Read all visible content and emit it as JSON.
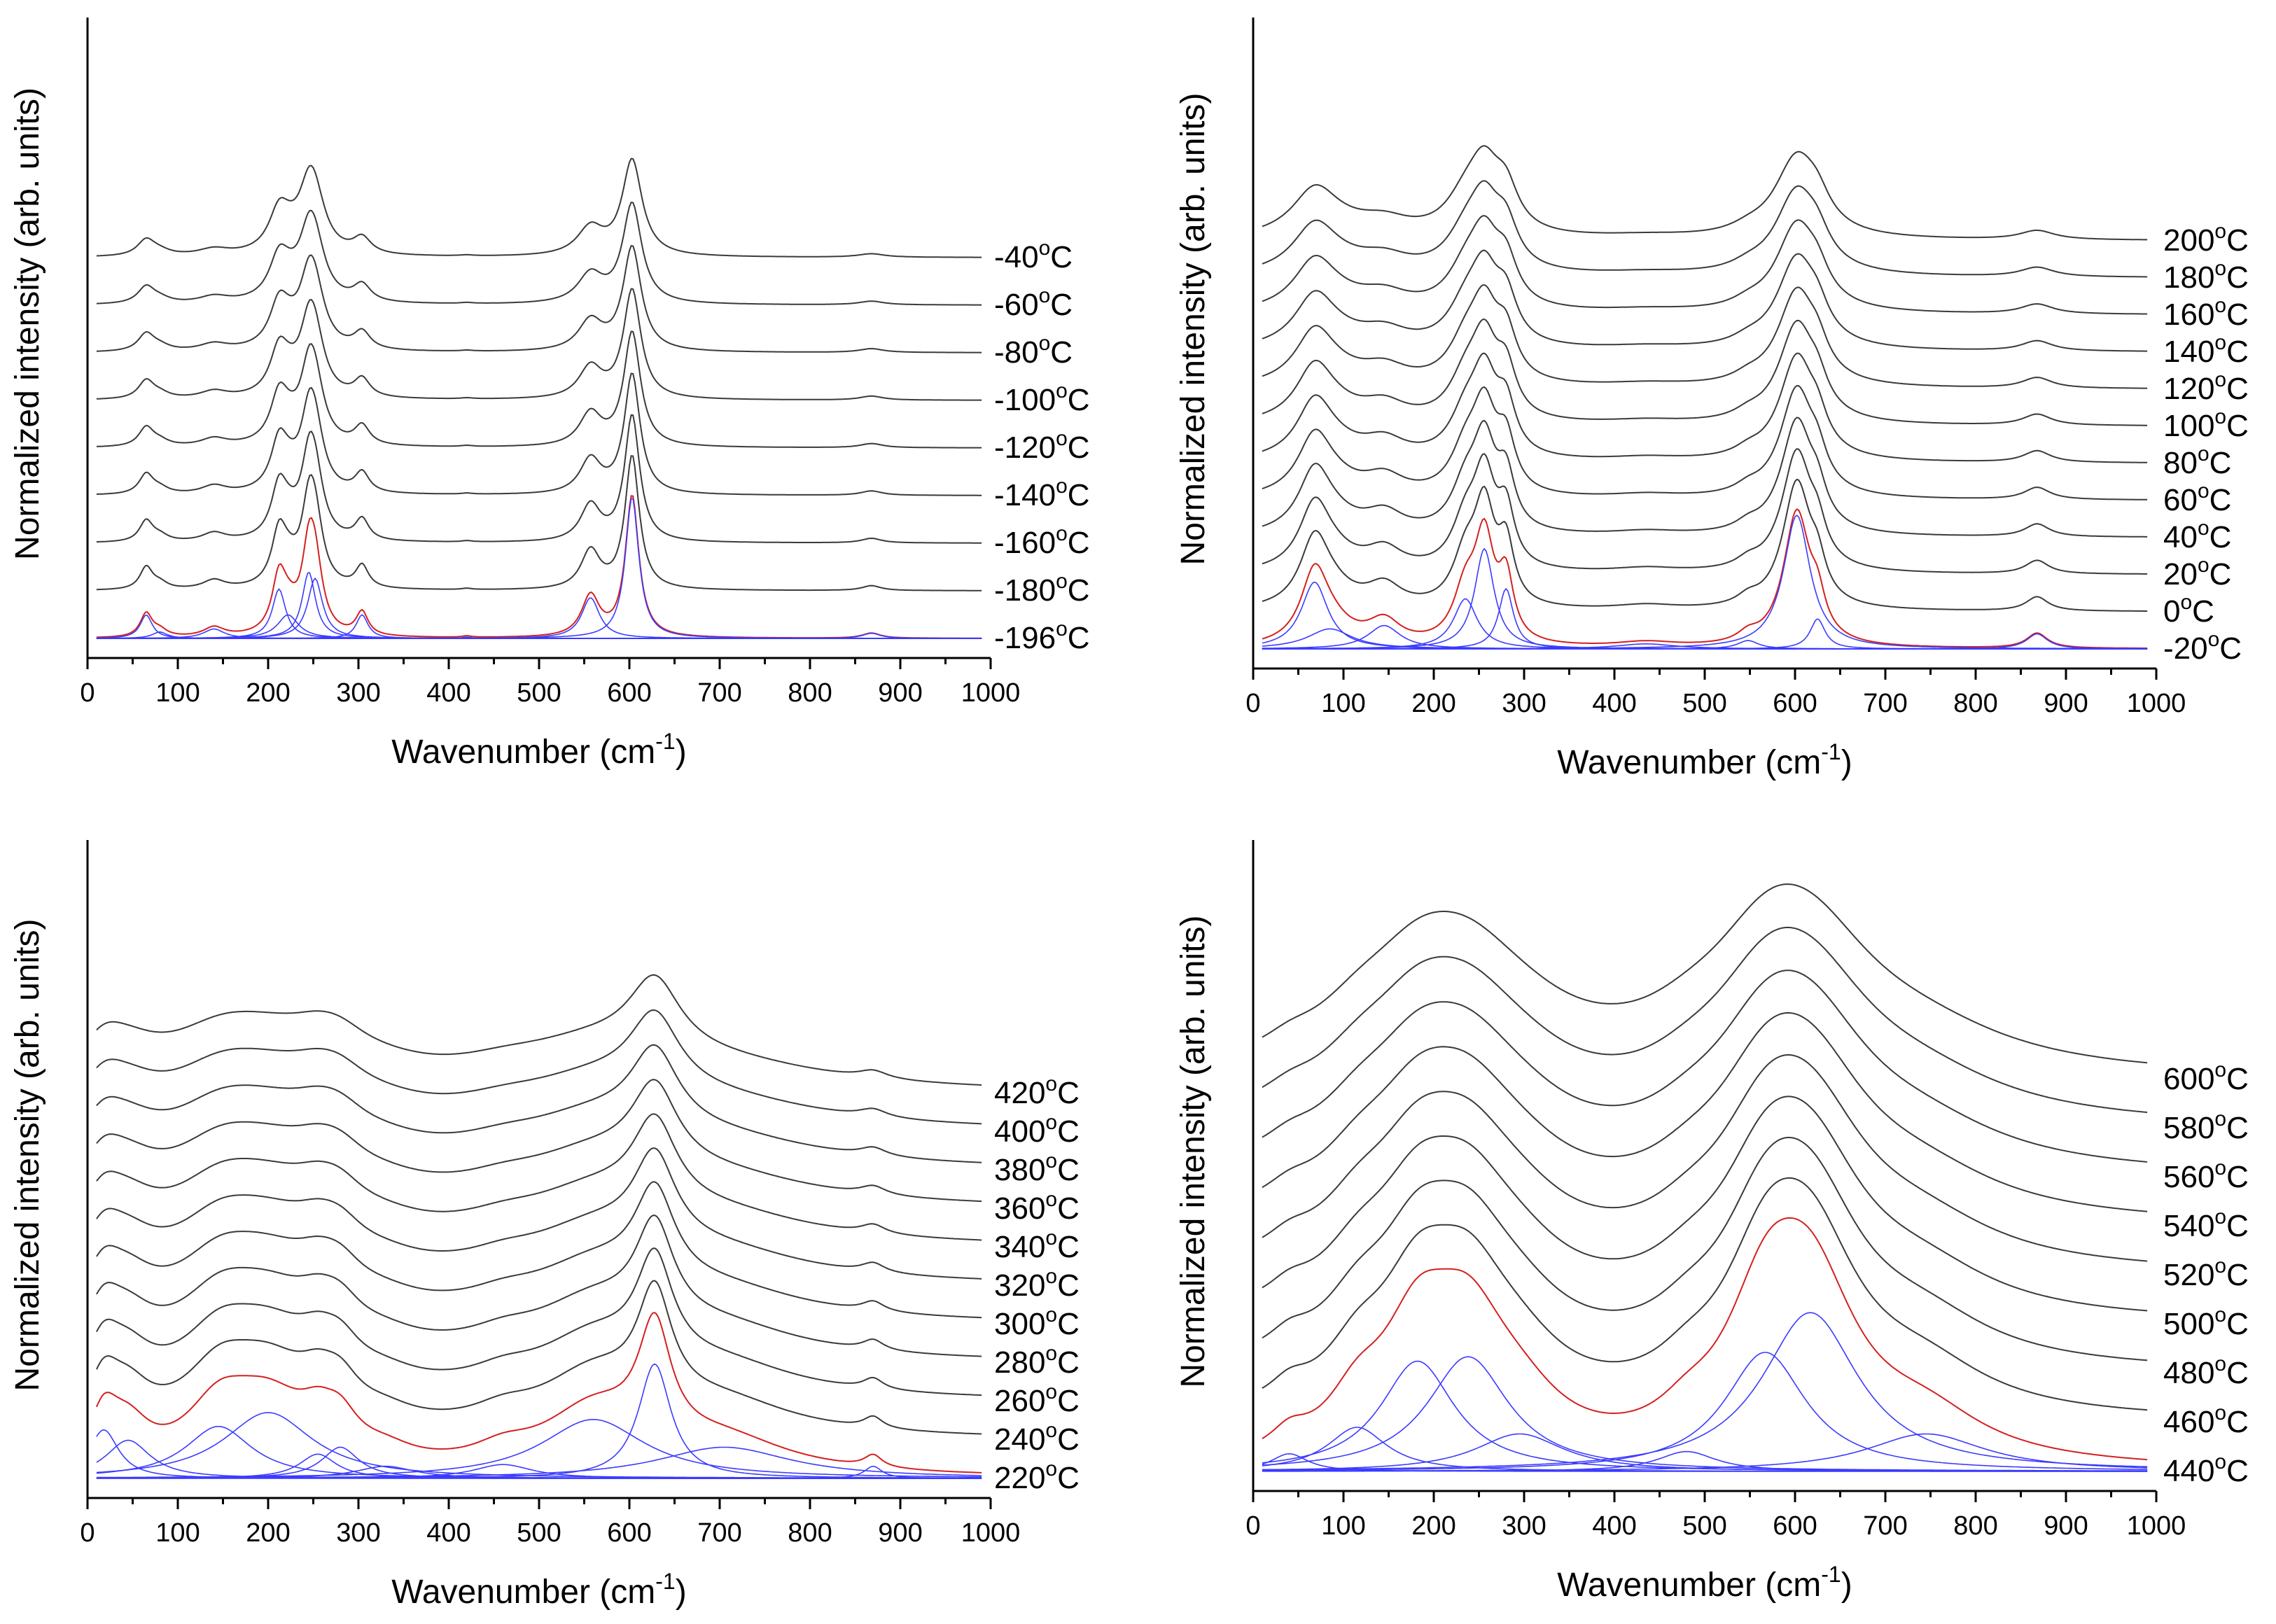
{
  "chart_data": [
    {
      "type": "line",
      "xlabel": "Wavenumber (cm",
      "xlabel_sup": "-1",
      "xlabel_end": ")",
      "ylabel": "Normalized intensity (arb. units)",
      "xlim": [
        0,
        1000
      ],
      "xticks": [
        "0",
        "100",
        "200",
        "300",
        "400",
        "500",
        "600",
        "700",
        "800",
        "900",
        "1000"
      ],
      "colors": {
        "spectra": "#3a3a3a",
        "fit_total": "#d42020",
        "fit_components": "#3b3bff"
      },
      "grid": false,
      "series": [
        {
          "name": "-40",
          "label": "-40",
          "unit": "C",
          "offset": 8.0
        },
        {
          "name": "-60",
          "label": "-60",
          "unit": "C",
          "offset": 7.0
        },
        {
          "name": "-80",
          "label": "-80",
          "unit": "C",
          "offset": 6.0
        },
        {
          "name": "-100",
          "label": "-100",
          "unit": "C",
          "offset": 5.0
        },
        {
          "name": "-120",
          "label": "-120",
          "unit": "C",
          "offset": 4.0
        },
        {
          "name": "-140",
          "label": "-140",
          "unit": "C",
          "offset": 3.0
        },
        {
          "name": "-160",
          "label": "-160",
          "unit": "C",
          "offset": 2.0
        },
        {
          "name": "-180",
          "label": "-180",
          "unit": "C",
          "offset": 1.0
        },
        {
          "name": "-196",
          "label": "-196",
          "unit": "C",
          "offset": 0.0,
          "fitted": true
        }
      ],
      "peaks": [
        {
          "center": 65,
          "width": 8,
          "height": 0.55
        },
        {
          "center": 80,
          "width": 10,
          "height": 0.15
        },
        {
          "center": 140,
          "width": 14,
          "height": 0.22
        },
        {
          "center": 212,
          "width": 9,
          "height": 1.15
        },
        {
          "center": 222,
          "width": 14,
          "height": 0.55
        },
        {
          "center": 245,
          "width": 9,
          "height": 1.55
        },
        {
          "center": 252,
          "width": 10,
          "height": 1.4
        },
        {
          "center": 304,
          "width": 8,
          "height": 0.55
        },
        {
          "center": 420,
          "width": 6,
          "height": 0.03
        },
        {
          "center": 557,
          "width": 12,
          "height": 0.95
        },
        {
          "center": 603,
          "width": 9,
          "height": 3.3
        },
        {
          "center": 868,
          "width": 12,
          "height": 0.12
        }
      ],
      "ymax": 11.8
    },
    {
      "type": "line",
      "xlabel": "Wavenumber (cm",
      "xlabel_sup": "-1",
      "xlabel_end": ")",
      "ylabel": "Normalized intensity (arb. units)",
      "xlim": [
        0,
        1000
      ],
      "xticks": [
        "0",
        "100",
        "200",
        "300",
        "400",
        "500",
        "600",
        "700",
        "800",
        "900",
        "1000"
      ],
      "colors": {
        "spectra": "#3a3a3a",
        "fit_total": "#d42020",
        "fit_components": "#3b3bff"
      },
      "grid": false,
      "series": [
        {
          "name": "200",
          "label": "200",
          "unit": "C",
          "offset": 11.0
        },
        {
          "name": "180",
          "label": "180",
          "unit": "C",
          "offset": 10.0
        },
        {
          "name": "160",
          "label": "160",
          "unit": "C",
          "offset": 9.0
        },
        {
          "name": "140",
          "label": "140",
          "unit": "C",
          "offset": 8.0
        },
        {
          "name": "120",
          "label": "120",
          "unit": "C",
          "offset": 7.0
        },
        {
          "name": "100",
          "label": "100",
          "unit": "C",
          "offset": 6.0
        },
        {
          "name": "80",
          "label": "80",
          "unit": "C",
          "offset": 5.0
        },
        {
          "name": "60",
          "label": "60",
          "unit": "C",
          "offset": 4.0
        },
        {
          "name": "40",
          "label": "40",
          "unit": "C",
          "offset": 3.0
        },
        {
          "name": "20",
          "label": "20",
          "unit": "C",
          "offset": 2.0
        },
        {
          "name": "0",
          "label": "0",
          "unit": "C",
          "offset": 1.0
        },
        {
          "name": "-20",
          "label": "-20",
          "unit": "C",
          "offset": 0.0,
          "fitted": true
        }
      ],
      "peaks": [
        {
          "center": 68,
          "width": 18,
          "height": 2.0
        },
        {
          "center": 85,
          "width": 30,
          "height": 0.6
        },
        {
          "center": 145,
          "width": 22,
          "height": 0.7
        },
        {
          "center": 235,
          "width": 16,
          "height": 1.5
        },
        {
          "center": 256,
          "width": 13,
          "height": 3.0
        },
        {
          "center": 280,
          "width": 10,
          "height": 1.8
        },
        {
          "center": 435,
          "width": 40,
          "height": 0.15
        },
        {
          "center": 548,
          "width": 14,
          "height": 0.25
        },
        {
          "center": 602,
          "width": 18,
          "height": 4.0
        },
        {
          "center": 625,
          "width": 10,
          "height": 0.9
        },
        {
          "center": 868,
          "width": 14,
          "height": 0.45
        }
      ],
      "ymax": 16.5
    },
    {
      "type": "line",
      "xlabel": "Wavenumber (cm",
      "xlabel_sup": "-1",
      "xlabel_end": ")",
      "ylabel": "Normalized intensity (arb. units)",
      "xlim": [
        0,
        1000
      ],
      "xticks": [
        "0",
        "100",
        "200",
        "300",
        "400",
        "500",
        "600",
        "700",
        "800",
        "900",
        "1000"
      ],
      "colors": {
        "spectra": "#3a3a3a",
        "fit_total": "#d42020",
        "fit_components": "#3b3bff"
      },
      "grid": false,
      "series": [
        {
          "name": "420",
          "label": "420",
          "unit": "C",
          "offset": 10.0
        },
        {
          "name": "400",
          "label": "400",
          "unit": "C",
          "offset": 9.0
        },
        {
          "name": "380",
          "label": "380",
          "unit": "C",
          "offset": 8.0
        },
        {
          "name": "360",
          "label": "360",
          "unit": "C",
          "offset": 7.0
        },
        {
          "name": "340",
          "label": "340",
          "unit": "C",
          "offset": 6.0
        },
        {
          "name": "320",
          "label": "320",
          "unit": "C",
          "offset": 5.0
        },
        {
          "name": "300",
          "label": "300",
          "unit": "C",
          "offset": 4.0
        },
        {
          "name": "280",
          "label": "280",
          "unit": "C",
          "offset": 3.0
        },
        {
          "name": "260",
          "label": "260",
          "unit": "C",
          "offset": 2.0
        },
        {
          "name": "240",
          "label": "240",
          "unit": "C",
          "offset": 1.0
        },
        {
          "name": "220",
          "label": "220",
          "unit": "C",
          "offset": 0.0,
          "fitted": true
        }
      ],
      "peaks": [
        {
          "center": 18,
          "width": 20,
          "height": 1.4
        },
        {
          "center": 45,
          "width": 30,
          "height": 1.1
        },
        {
          "center": 145,
          "width": 45,
          "height": 1.5
        },
        {
          "center": 200,
          "width": 60,
          "height": 1.9
        },
        {
          "center": 255,
          "width": 25,
          "height": 0.7
        },
        {
          "center": 280,
          "width": 25,
          "height": 0.9
        },
        {
          "center": 330,
          "width": 40,
          "height": 0.35
        },
        {
          "center": 460,
          "width": 40,
          "height": 0.4
        },
        {
          "center": 560,
          "width": 70,
          "height": 1.7
        },
        {
          "center": 628,
          "width": 22,
          "height": 3.3
        },
        {
          "center": 705,
          "width": 90,
          "height": 0.9
        },
        {
          "center": 870,
          "width": 12,
          "height": 0.35
        }
      ],
      "ymax": 15.5
    },
    {
      "type": "line",
      "xlabel": "Wavenumber (cm",
      "xlabel_sup": "-1",
      "xlabel_end": ")",
      "ylabel": "Normalized intensity (arb. units)",
      "xlim": [
        0,
        1000
      ],
      "xticks": [
        "0",
        "100",
        "200",
        "300",
        "400",
        "500",
        "600",
        "700",
        "800",
        "900",
        "1000"
      ],
      "colors": {
        "spectra": "#3a3a3a",
        "fit_total": "#d42020",
        "fit_components": "#3b3bff"
      },
      "grid": false,
      "series": [
        {
          "name": "600",
          "label": "600",
          "unit": "C",
          "offset": 8.0
        },
        {
          "name": "580",
          "label": "580",
          "unit": "C",
          "offset": 7.0
        },
        {
          "name": "560",
          "label": "560",
          "unit": "C",
          "offset": 6.0
        },
        {
          "name": "540",
          "label": "540",
          "unit": "C",
          "offset": 5.0
        },
        {
          "name": "520",
          "label": "520",
          "unit": "C",
          "offset": 4.0
        },
        {
          "name": "500",
          "label": "500",
          "unit": "C",
          "offset": 3.0
        },
        {
          "name": "480",
          "label": "480",
          "unit": "C",
          "offset": 2.0
        },
        {
          "name": "460",
          "label": "460",
          "unit": "C",
          "offset": 1.0
        },
        {
          "name": "440",
          "label": "440",
          "unit": "C",
          "offset": 0.0,
          "fitted": true
        }
      ],
      "peaks": [
        {
          "center": 40,
          "width": 25,
          "height": 0.4
        },
        {
          "center": 115,
          "width": 40,
          "height": 1.0
        },
        {
          "center": 182,
          "width": 50,
          "height": 2.5
        },
        {
          "center": 238,
          "width": 55,
          "height": 2.6
        },
        {
          "center": 295,
          "width": 60,
          "height": 0.85
        },
        {
          "center": 480,
          "width": 40,
          "height": 0.45
        },
        {
          "center": 567,
          "width": 55,
          "height": 2.7
        },
        {
          "center": 617,
          "width": 65,
          "height": 3.6
        },
        {
          "center": 745,
          "width": 80,
          "height": 0.85
        }
      ],
      "ymax": 14.5
    }
  ]
}
